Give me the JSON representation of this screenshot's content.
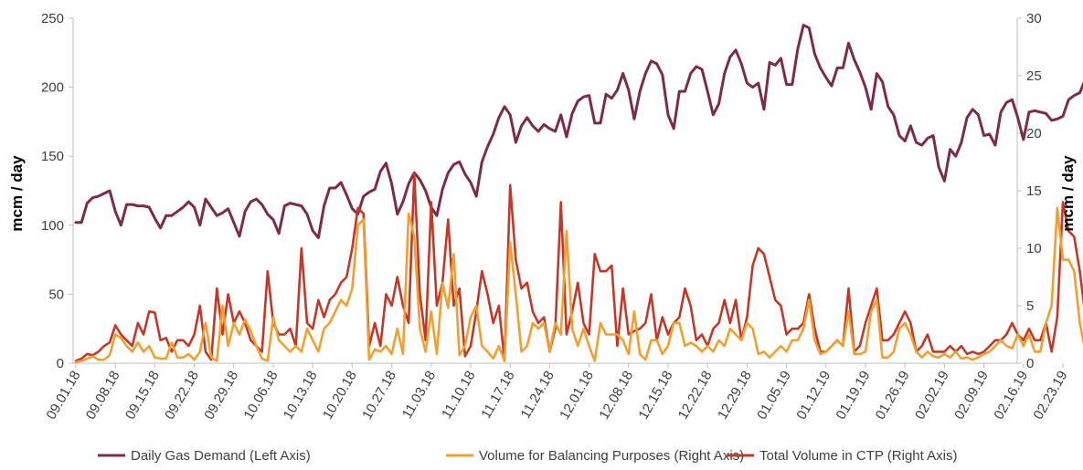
{
  "chart_data": {
    "type": "line",
    "title": "",
    "ylabel_left": "mcm / day",
    "ylabel_right": "mcm / day",
    "ylim_left": [
      0,
      250
    ],
    "ylim_right": [
      0,
      30
    ],
    "yticks_left": [
      0,
      50,
      100,
      150,
      200,
      250
    ],
    "yticks_right": [
      0,
      5,
      10,
      15,
      20,
      25,
      30
    ],
    "x_tick_labels": [
      "09.01.18",
      "09.08.18",
      "09.15.18",
      "09.22.18",
      "09.29.18",
      "10.06.18",
      "10.13.18",
      "10.20.18",
      "10.27.18",
      "11.03.18",
      "11.10.18",
      "11.17.18",
      "11.24.18",
      "12.01.18",
      "12.08.18",
      "12.15.18",
      "12.22.18",
      "12.29.18",
      "01.05.19",
      "01.12.19",
      "01.19.19",
      "01.26.19",
      "02.02.19",
      "02.09.19",
      "02.16.19",
      "02.23.19"
    ],
    "grid": false,
    "legend_position": "bottom",
    "colors": {
      "demand": "#7b2d46",
      "balancing": "#f0a030",
      "ctp": "#c0392b",
      "axis": "#bfbfbf"
    },
    "series": [
      {
        "name": "Daily Gas Demand (Left Axis)",
        "axis": "left",
        "color": "#7b2d46",
        "values": [
          102,
          102,
          116,
          120,
          121,
          123,
          125,
          110,
          100,
          115,
          115,
          114,
          114,
          113,
          105,
          98,
          107,
          107,
          110,
          113,
          117,
          113,
          100,
          119,
          113,
          107,
          109,
          112,
          102,
          92,
          110,
          117,
          119,
          115,
          108,
          104,
          94,
          114,
          116,
          115,
          114,
          108,
          96,
          91,
          114,
          127,
          127,
          131,
          122,
          112,
          108,
          121,
          124,
          126,
          139,
          145,
          130,
          108,
          117,
          130,
          138,
          133,
          125,
          113,
          107,
          126,
          138,
          144,
          146,
          137,
          131,
          121,
          146,
          157,
          166,
          178,
          186,
          180,
          160,
          172,
          178,
          172,
          168,
          173,
          170,
          168,
          180,
          164,
          181,
          190,
          193,
          194,
          174,
          174,
          195,
          192,
          198,
          210,
          198,
          177,
          197,
          210,
          219,
          217,
          209,
          180,
          170,
          197,
          197,
          210,
          215,
          213,
          197,
          180,
          188,
          210,
          222,
          227,
          217,
          203,
          200,
          203,
          184,
          218,
          216,
          221,
          202,
          202,
          228,
          245,
          243,
          224,
          214,
          207,
          201,
          214,
          214,
          232,
          220,
          211,
          200,
          184,
          210,
          204,
          186,
          180,
          165,
          161,
          172,
          160,
          158,
          163,
          165,
          142,
          132,
          155,
          150,
          160,
          178,
          184,
          180,
          165,
          166,
          158,
          182,
          189,
          191,
          178,
          162,
          182,
          183,
          182,
          181,
          176,
          177,
          179,
          191,
          194,
          196,
          206
        ],
        "note_unused": ""
      },
      {
        "name": "Volume for Balancing Purposes (Right Axis)",
        "axis": "right",
        "color": "#f0a030",
        "values": [
          0.1,
          0.2,
          0.4,
          0.6,
          0.3,
          0.3,
          0.7,
          2.5,
          2.2,
          1.5,
          1.0,
          1.8,
          1.0,
          1.5,
          0.5,
          0.4,
          0.4,
          1.8,
          0.5,
          0.5,
          0.8,
          0.3,
          1.0,
          3.5,
          0.5,
          0.2,
          5.0,
          1.5,
          3.5,
          2.5,
          3.8,
          2.8,
          1.5,
          0.4,
          0.2,
          4.0,
          2.0,
          1.5,
          1.0,
          1.5,
          1.0,
          3.0,
          2.0,
          1.0,
          3.0,
          3.5,
          4.5,
          5.5,
          5.0,
          6.5,
          12.0,
          12.5,
          0.3,
          1.2,
          1.0,
          1.5,
          0.8,
          3.0,
          0.8,
          13.0,
          11.0,
          3.0,
          1.0,
          4.5,
          0.8,
          7.0,
          4.8,
          9.5,
          0.7,
          1.5,
          4.0,
          5.0,
          1.5,
          1.0,
          0.4,
          1.5,
          0.2,
          10.5,
          6.0,
          1.0,
          1.5,
          3.5,
          3.0,
          3.5,
          1.0,
          3.5,
          2.5,
          11.5,
          3.0,
          1.5,
          3.0,
          1.5,
          0.2,
          3.5,
          2.5,
          2.5,
          2.5,
          2.0,
          0.8,
          4.5,
          0.8,
          0.3,
          2.0,
          2.0,
          0.8,
          1.5,
          3.5,
          3.5,
          1.5,
          1.8,
          1.5,
          1.0,
          1.5,
          1.0,
          2.0,
          1.5,
          3.0,
          2.5,
          2.0,
          3.5,
          3.0,
          0.8,
          1.0,
          0.5,
          1.0,
          1.5,
          1.0,
          2.0,
          2.0,
          3.0,
          5.5,
          2.0,
          0.8,
          1.0,
          1.5,
          2.0,
          1.5,
          4.5,
          0.8,
          0.8,
          1.0,
          4.5,
          5.5,
          0.5,
          0.5,
          1.0,
          3.0,
          3.5,
          2.5,
          1.0,
          0.5,
          1.0,
          0.6,
          0.5,
          0.8,
          0.5,
          1.0,
          0.4,
          0.5,
          0.3,
          0.5,
          0.8,
          1.0,
          1.5,
          2.0,
          1.5,
          1.3,
          2.5,
          1.5,
          2.5,
          1.0,
          1.0,
          3.5,
          5.0,
          13.5,
          9.0,
          9.0,
          8.0,
          3.5,
          1.0,
          1.5,
          4.5,
          3.5,
          1.0,
          2.0,
          1.5,
          2.5,
          1.5,
          4.0,
          3.0
        ]
      },
      {
        "name": "Total Volume in CTP (Right Axis)",
        "axis": "right",
        "color": "#c0392b",
        "values": [
          0.2,
          0.4,
          0.8,
          0.7,
          1.0,
          1.5,
          1.8,
          3.3,
          2.5,
          2.0,
          1.5,
          3.5,
          2.5,
          4.5,
          4.4,
          2.0,
          2.2,
          1.0,
          2.0,
          2.0,
          1.5,
          2.5,
          5.0,
          1.0,
          0.3,
          6.5,
          2.5,
          6.0,
          3.5,
          4.5,
          3.5,
          2.0,
          1.5,
          1.0,
          8.0,
          3.5,
          2.5,
          2.5,
          3.0,
          1.5,
          10.0,
          3.5,
          3.0,
          5.5,
          4.0,
          5.5,
          6.0,
          7.0,
          7.5,
          10.0,
          13.5,
          13.0,
          1.5,
          3.5,
          1.5,
          6.0,
          5.0,
          7.5,
          5.0,
          3.5,
          16.5,
          6.0,
          2.0,
          14.0,
          5.0,
          7.0,
          12.5,
          5.0,
          6.5,
          0.6,
          1.5,
          4.5,
          8.0,
          6.0,
          3.5,
          5.0,
          0.2,
          15.5,
          9.0,
          6.5,
          7.0,
          4.5,
          3.5,
          4.0,
          1.0,
          3.0,
          14.0,
          2.5,
          4.5,
          7.0,
          3.5,
          2.5,
          9.5,
          8.0,
          8.0,
          8.5,
          1.5,
          6.5,
          2.5,
          2.8,
          3.0,
          3.5,
          6.0,
          2.0,
          4.0,
          2.5,
          3.5,
          4.0,
          6.5,
          5.0,
          2.0,
          2.5,
          1.5,
          3.0,
          3.5,
          5.5,
          3.5,
          5.5,
          2.0,
          4.0,
          8.5,
          10.0,
          9.5,
          7.5,
          5.5,
          5.0,
          2.5,
          3.0,
          3.0,
          3.5,
          6.0,
          3.0,
          1.0,
          1.0,
          1.5,
          2.0,
          1.5,
          6.5,
          1.0,
          1.5,
          3.5,
          5.0,
          6.5,
          2.0,
          2.0,
          2.5,
          3.5,
          4.5,
          3.5,
          1.0,
          1.5,
          2.5,
          1.0,
          1.0,
          1.0,
          1.5,
          1.0,
          1.5,
          0.8,
          1.0,
          0.8,
          1.0,
          1.5,
          2.0,
          2.0,
          2.5,
          3.5,
          2.5,
          2.0,
          3.0,
          2.0,
          2.0,
          3.5,
          1.0,
          4.0,
          14.0,
          11.5,
          11.0,
          8.0,
          4.0,
          3.0,
          2.5,
          7.0,
          4.0,
          2.0,
          5.0,
          3.5,
          4.5,
          2.0,
          5.5,
          4.0
        ]
      }
    ]
  }
}
